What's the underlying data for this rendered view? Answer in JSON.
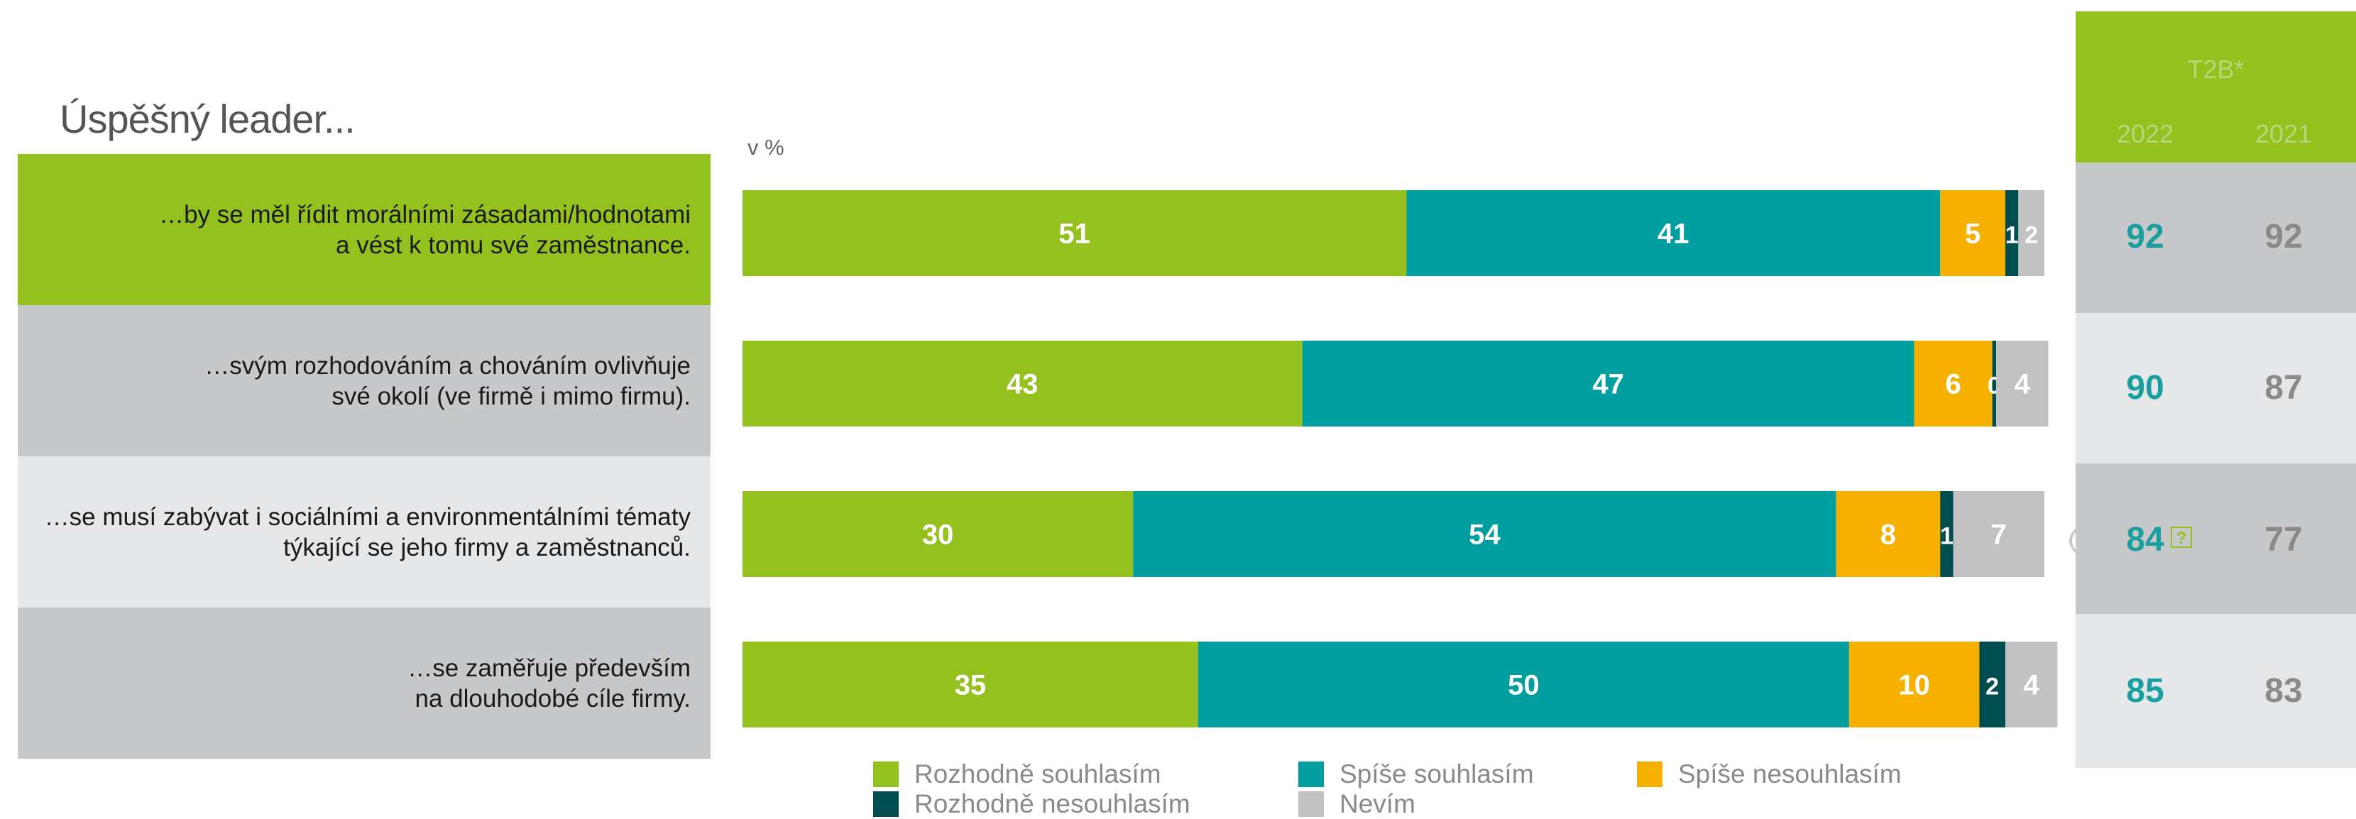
{
  "title": "Úspěšný leader...",
  "unit": "v %",
  "colors": {
    "rozhodne_souhlasim": "#95c11f",
    "spise_souhlasim": "#009e9f",
    "spise_nesouhlasim": "#f6b000",
    "rozhodne_nesouhlasim": "#004d4f",
    "nevim": "#c2c2c2",
    "row_bg": [
      "#95c11f",
      "#c7c8ca",
      "#e6e7e8",
      "#c7c8ca"
    ]
  },
  "rows": [
    {
      "label": "…by se měl řídit morálními zásadami/hodnotami\na vést k tomu své zaměstnance."
    },
    {
      "label": "…svým rozhodováním a chováním ovlivňuje\nsvé okolí (ve firmě i mimo firmu)."
    },
    {
      "label": "…se musí zabývat i sociálními a environmentálními tématy\ntýkající se jeho firmy a zaměstnanců."
    },
    {
      "label": "…se zaměřuje především\nna dlouhodobé cíle firmy."
    }
  ],
  "t2b": {
    "title": "T2B*",
    "year_2022": "2022",
    "year_2021": "2021",
    "values_2022": [
      "92",
      "90",
      "84",
      "85"
    ],
    "values_2021": [
      "92",
      "87",
      "77",
      "83"
    ],
    "flag_icon": "question-box-icon",
    "flag_text": "?"
  },
  "legend": [
    {
      "label": "Rozhodně souhlasím",
      "color": "#95c11f"
    },
    {
      "label": "Spíše souhlasím",
      "color": "#009e9f"
    },
    {
      "label": "Spíše nesouhlasím",
      "color": "#f6b000"
    },
    {
      "label": "Rozhodně nesouhlasím",
      "color": "#004d4f"
    },
    {
      "label": "Nevím",
      "color": "#c2c2c2"
    }
  ],
  "chart_data": {
    "type": "bar",
    "orientation": "horizontal",
    "stacked": true,
    "categories": [
      "…by se měl řídit morálními zásadami/hodnotami a vést k tomu své zaměstnance.",
      "…svým rozhodováním a chováním ovlivňuje své okolí (ve firmě i mimo firmu).",
      "…se musí zabývat i sociálními a environmentálními tématy týkající se jeho firmy a zaměstnanců.",
      "…se zaměřuje především na dlouhodobé cíle firmy."
    ],
    "series": [
      {
        "name": "Rozhodně souhlasím",
        "values": [
          51,
          43,
          30,
          35
        ],
        "labels": [
          "51",
          "43",
          "30",
          "35"
        ]
      },
      {
        "name": "Spíše souhlasím",
        "values": [
          41,
          47,
          54,
          50
        ],
        "labels": [
          "41",
          "47",
          "54",
          "50"
        ]
      },
      {
        "name": "Spíše nesouhlasím",
        "values": [
          5,
          6,
          8,
          10
        ],
        "labels": [
          "5",
          "6",
          "8",
          "10"
        ]
      },
      {
        "name": "Rozhodně nesouhlasím",
        "values": [
          1,
          0.3,
          1,
          2
        ],
        "labels": [
          "1",
          "0",
          "1",
          "2"
        ]
      },
      {
        "name": "Nevím",
        "values": [
          2,
          4,
          7,
          4
        ],
        "labels": [
          "2",
          "4",
          "7",
          "4"
        ]
      }
    ],
    "xlim": [
      0,
      100
    ],
    "ylabel": "v %",
    "grid": false,
    "legend_position": "bottom"
  }
}
